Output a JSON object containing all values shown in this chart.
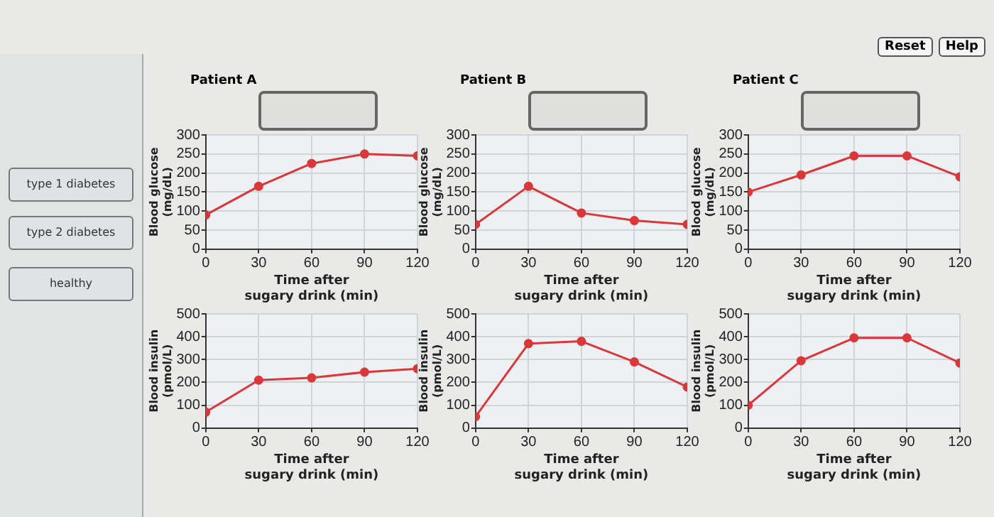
{
  "chart_data": [
    {
      "type": "other",
      "annotations": [
        "Reset",
        "Help"
      ]
    },
    {
      "type": "other",
      "annotations": [
        "type 1 diabetes",
        "type 2 diabetes",
        "healthy"
      ]
    },
    {
      "type": "line",
      "title": "Patient A",
      "xlabel": "Time after\nsugary drink (min)",
      "ylabel": "Blood glucose\n(mg/dL)",
      "x": [
        0,
        30,
        60,
        90,
        120
      ],
      "values": [
        90,
        165,
        225,
        250,
        245
      ],
      "color": "#d9383a",
      "xlim": [
        0,
        120
      ],
      "xticks": [
        0,
        30,
        60,
        90,
        120
      ],
      "ylim": [
        0,
        300
      ],
      "yticks": [
        0,
        50,
        100,
        150,
        200,
        250,
        300
      ],
      "grid": true,
      "marker": "circle"
    },
    {
      "type": "line",
      "title": "Patient B",
      "xlabel": "Time after\nsugary drink (min)",
      "ylabel": "Blood glucose\n(mg/dL)",
      "x": [
        0,
        30,
        60,
        90,
        120
      ],
      "values": [
        65,
        165,
        95,
        75,
        65
      ],
      "color": "#d9383a",
      "xlim": [
        0,
        120
      ],
      "xticks": [
        0,
        30,
        60,
        90,
        120
      ],
      "ylim": [
        0,
        300
      ],
      "yticks": [
        0,
        50,
        100,
        150,
        200,
        250,
        300
      ],
      "grid": true,
      "marker": "circle"
    },
    {
      "type": "line",
      "title": "Patient C",
      "xlabel": "Time after\nsugary drink (min)",
      "ylabel": "Blood glucose\n(mg/dL)",
      "x": [
        0,
        30,
        60,
        90,
        120
      ],
      "values": [
        150,
        195,
        245,
        245,
        190
      ],
      "color": "#d9383a",
      "xlim": [
        0,
        120
      ],
      "xticks": [
        0,
        30,
        60,
        90,
        120
      ],
      "ylim": [
        0,
        300
      ],
      "yticks": [
        0,
        50,
        100,
        150,
        200,
        250,
        300
      ],
      "grid": true,
      "marker": "circle"
    },
    {
      "type": "line",
      "xlabel": "Time after\nsugary drink (min)",
      "ylabel": "Blood insulin\n(pmol/L)",
      "x": [
        0,
        30,
        60,
        90,
        120
      ],
      "values": [
        70,
        210,
        220,
        245,
        260
      ],
      "color": "#d9383a",
      "xlim": [
        0,
        120
      ],
      "xticks": [
        0,
        30,
        60,
        90,
        120
      ],
      "ylim": [
        0,
        500
      ],
      "yticks": [
        0,
        100,
        200,
        300,
        400,
        500
      ],
      "grid": true,
      "marker": "circle"
    },
    {
      "type": "line",
      "xlabel": "Time after\nsugary drink (min)",
      "ylabel": "Blood insulin\n(pmol/L)",
      "x": [
        0,
        30,
        60,
        90,
        120
      ],
      "values": [
        50,
        370,
        380,
        290,
        180
      ],
      "color": "#d9383a",
      "xlim": [
        0,
        120
      ],
      "xticks": [
        0,
        30,
        60,
        90,
        120
      ],
      "ylim": [
        0,
        500
      ],
      "yticks": [
        0,
        100,
        200,
        300,
        400,
        500
      ],
      "grid": true,
      "marker": "circle"
    },
    {
      "type": "line",
      "xlabel": "Time after\nsugary drink (min)",
      "ylabel": "Blood insulin\n(pmol/L)",
      "x": [
        0,
        30,
        60,
        90,
        120
      ],
      "values": [
        100,
        295,
        395,
        395,
        285
      ],
      "color": "#d9383a",
      "xlim": [
        0,
        120
      ],
      "xticks": [
        0,
        30,
        60,
        90,
        120
      ],
      "ylim": [
        0,
        500
      ],
      "yticks": [
        0,
        100,
        200,
        300,
        400,
        500
      ],
      "grid": true,
      "marker": "circle"
    }
  ]
}
